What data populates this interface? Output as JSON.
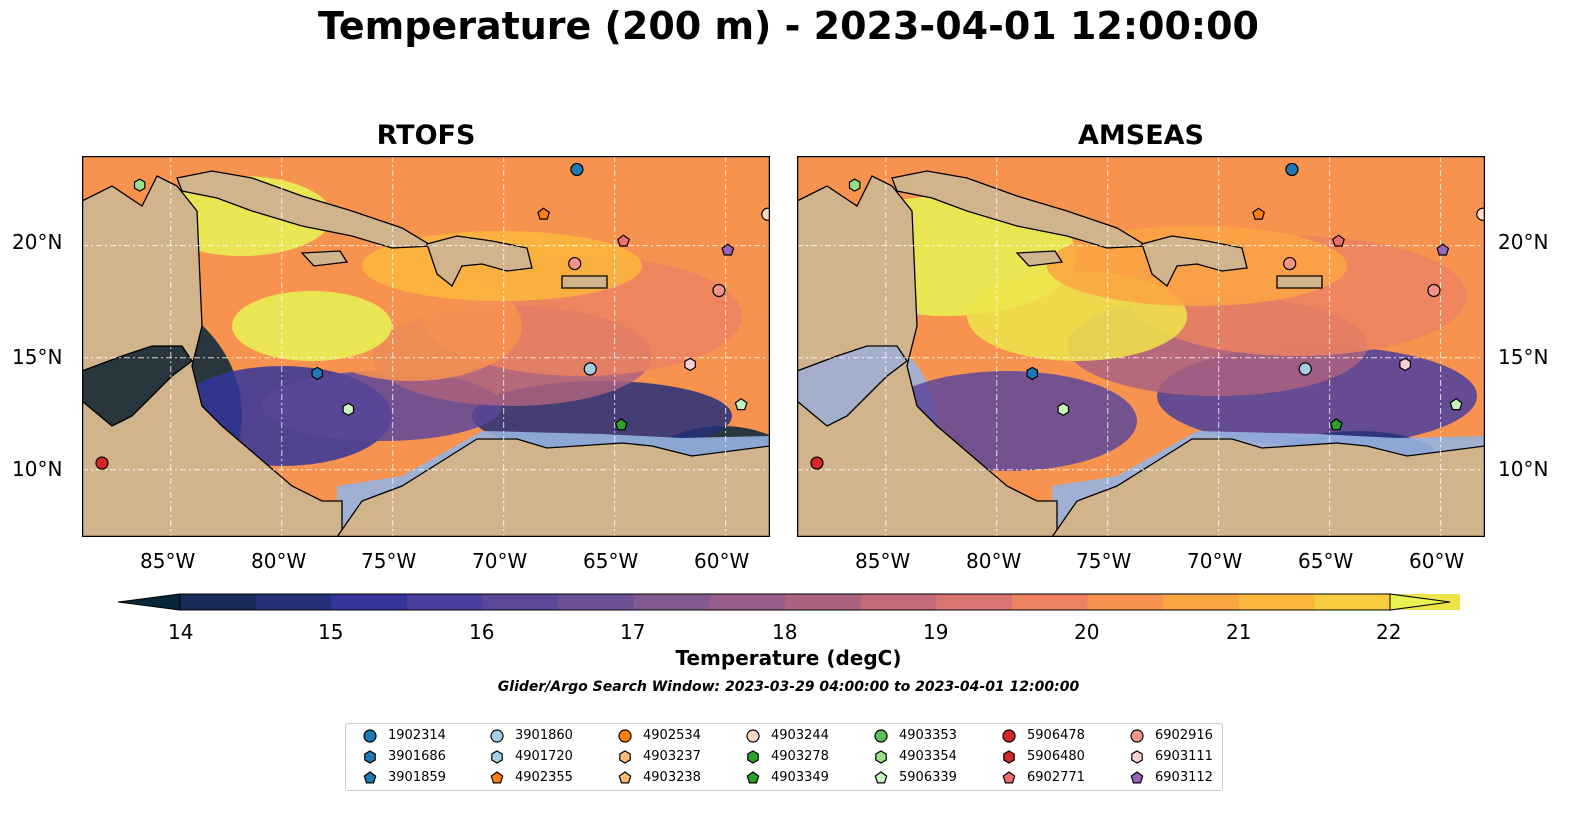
{
  "title": "Temperature (200 m) - 2023-04-01 12:00:00",
  "panels": [
    {
      "title": "RTOFS"
    },
    {
      "title": "AMSEAS"
    }
  ],
  "map": {
    "lon_range": [
      -89,
      -58
    ],
    "lat_range": [
      7,
      24
    ],
    "lon_ticks": [
      "85°W",
      "80°W",
      "75°W",
      "70°W",
      "65°W",
      "60°W"
    ],
    "lat_ticks": [
      "20°N",
      "15°N",
      "10°N"
    ],
    "colors": {
      "land": "#d2b48c",
      "shallow_water": "#96b4e1",
      "coastline": "#000000",
      "graticule": "#ffffff"
    }
  },
  "colorbar": {
    "label": "Temperature (degC)",
    "ticks": [
      "14",
      "15",
      "16",
      "17",
      "18",
      "19",
      "20",
      "21",
      "22"
    ],
    "range": [
      14,
      22
    ],
    "extend": "both",
    "colors": [
      "#06263a",
      "#1a2b5a",
      "#262f7a",
      "#34359a",
      "#4a3e9e",
      "#5c479a",
      "#6d5194",
      "#815a8f",
      "#965e88",
      "#ab6280",
      "#c26a78",
      "#d97570",
      "#ec8262",
      "#f8934f",
      "#fba442",
      "#fbb73c",
      "#f7cd3f",
      "#eee44a",
      "#e8f352"
    ]
  },
  "search_window": "Glider/Argo Search Window: 2023-03-29 04:00:00 to 2023-04-01 12:00:00",
  "legend": [
    {
      "id": "1902314",
      "color": "#1f77b4",
      "shape": "circle"
    },
    {
      "id": "3901686",
      "color": "#1f77b4",
      "shape": "hexagon"
    },
    {
      "id": "3901859",
      "color": "#1f77b4",
      "shape": "pentagon"
    },
    {
      "id": "3901860",
      "color": "#a6cee3",
      "shape": "circle"
    },
    {
      "id": "4901720",
      "color": "#a6cee3",
      "shape": "hexagon"
    },
    {
      "id": "4902355",
      "color": "#ff7f0e",
      "shape": "pentagon"
    },
    {
      "id": "4902534",
      "color": "#ff7f0e",
      "shape": "circle"
    },
    {
      "id": "4903237",
      "color": "#ffbb78",
      "shape": "hexagon"
    },
    {
      "id": "4903238",
      "color": "#ffbb78",
      "shape": "pentagon"
    },
    {
      "id": "4903244",
      "color": "#fddbc7",
      "shape": "circle"
    },
    {
      "id": "4903278",
      "color": "#2ca02c",
      "shape": "hexagon"
    },
    {
      "id": "4903349",
      "color": "#2ca02c",
      "shape": "pentagon"
    },
    {
      "id": "4903353",
      "color": "#5cbf5c",
      "shape": "circle"
    },
    {
      "id": "4903354",
      "color": "#98df8a",
      "shape": "hexagon"
    },
    {
      "id": "5906339",
      "color": "#c7f5c0",
      "shape": "pentagon"
    },
    {
      "id": "5906478",
      "color": "#d62728",
      "shape": "circle"
    },
    {
      "id": "5906480",
      "color": "#d62728",
      "shape": "hexagon"
    },
    {
      "id": "6902771",
      "color": "#ef6f6c",
      "shape": "pentagon"
    },
    {
      "id": "6902916",
      "color": "#f1948a",
      "shape": "circle"
    },
    {
      "id": "6903111",
      "color": "#fbd0d4",
      "shape": "hexagon"
    },
    {
      "id": "6903112",
      "color": "#9467bd",
      "shape": "pentagon"
    }
  ],
  "floats": [
    {
      "lon": -86.4,
      "lat": 22.7,
      "color": "#98df8a",
      "shape": "hexagon"
    },
    {
      "lon": -66.7,
      "lat": 23.4,
      "color": "#1f77b4",
      "shape": "circle"
    },
    {
      "lon": -68.2,
      "lat": 21.4,
      "color": "#ff7f0e",
      "shape": "pentagon"
    },
    {
      "lon": -64.6,
      "lat": 20.2,
      "color": "#ef6f6c",
      "shape": "pentagon"
    },
    {
      "lon": -58.1,
      "lat": 21.4,
      "color": "#fddbc7",
      "shape": "circle"
    },
    {
      "lon": -66.8,
      "lat": 19.2,
      "color": "#f1948a",
      "shape": "circle"
    },
    {
      "lon": -59.9,
      "lat": 19.8,
      "color": "#9467bd",
      "shape": "pentagon"
    },
    {
      "lon": -60.3,
      "lat": 18.0,
      "color": "#f1948a",
      "shape": "circle"
    },
    {
      "lon": -61.6,
      "lat": 14.7,
      "color": "#fbd0d4",
      "shape": "hexagon"
    },
    {
      "lon": -66.1,
      "lat": 14.5,
      "color": "#a6cee3",
      "shape": "circle"
    },
    {
      "lon": -78.4,
      "lat": 14.3,
      "color": "#1f77b4",
      "shape": "hexagon"
    },
    {
      "lon": -77.0,
      "lat": 12.7,
      "color": "#c7f5c0",
      "shape": "hexagon"
    },
    {
      "lon": -64.7,
      "lat": 12.0,
      "color": "#2ca02c",
      "shape": "pentagon"
    },
    {
      "lon": -59.3,
      "lat": 12.9,
      "color": "#c7f5c0",
      "shape": "pentagon"
    },
    {
      "lon": -88.1,
      "lat": 10.3,
      "color": "#d62728",
      "shape": "circle"
    }
  ]
}
